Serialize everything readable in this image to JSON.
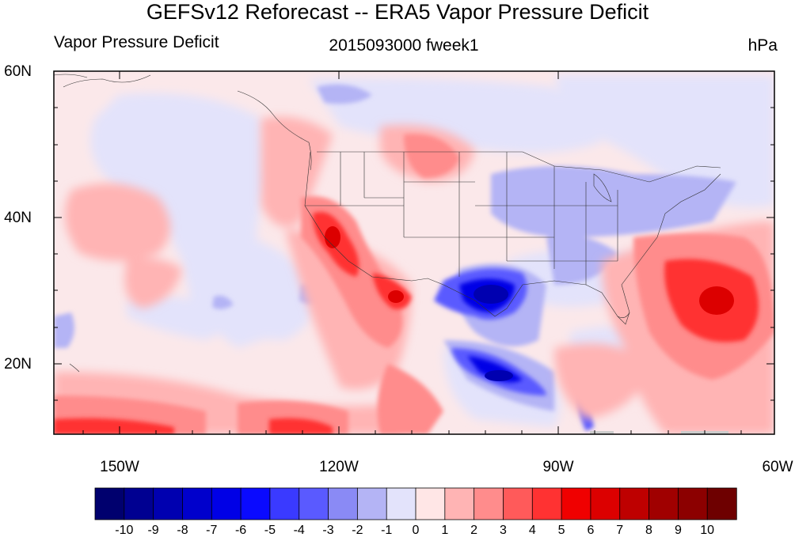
{
  "header": {
    "title": "GEFSv12 Reforecast -- ERA5 Vapor Pressure Deficit",
    "left_subtitle": "Vapor Pressure Deficit",
    "center_subtitle": "2015093000 fweek1",
    "right_subtitle": "hPa"
  },
  "axes": {
    "lat_labels": [
      "60N",
      "40N",
      "20N"
    ],
    "lon_labels": [
      "150W",
      "120W",
      "90W",
      "60W"
    ]
  },
  "colorbar": {
    "labels": [
      "-10",
      "-9",
      "-8",
      "-7",
      "-6",
      "-5",
      "-4",
      "-3",
      "-2",
      "-1",
      "0",
      "1",
      "2",
      "3",
      "4",
      "5",
      "6",
      "7",
      "8",
      "9",
      "10"
    ],
    "colors": [
      "#00006e",
      "#000091",
      "#0000b0",
      "#0000cc",
      "#0000e6",
      "#0a0aff",
      "#3a3aff",
      "#5a5aff",
      "#8a8af5",
      "#b4b4f5",
      "#e3e3fb",
      "#ffe6e6",
      "#ffb4b4",
      "#ff8c8c",
      "#ff5a5a",
      "#ff3232",
      "#f00000",
      "#dc0000",
      "#be0000",
      "#a00000",
      "#8c0000",
      "#6e0000"
    ]
  },
  "map": {
    "region": "North America and adjacent Pacific/Atlantic",
    "background_color": "#fbe8ea"
  }
}
